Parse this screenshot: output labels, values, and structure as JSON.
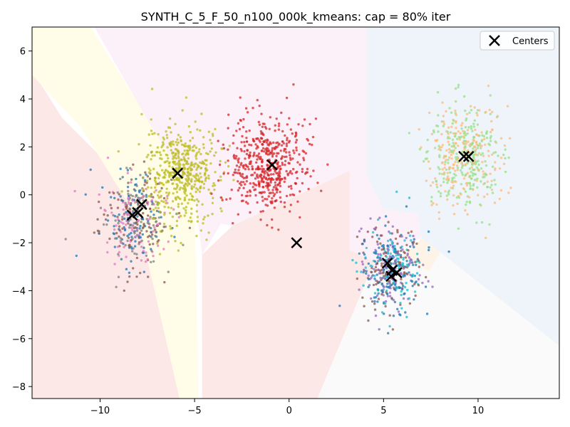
{
  "chart_data": {
    "type": "scatter",
    "title": "SYNTH_C_5_F_50_n100_000k_kmeans: cap = 80% iter",
    "xlabel": "",
    "ylabel": "",
    "xlim": [
      -13.6,
      14.3
    ],
    "ylim": [
      -8.5,
      7.0
    ],
    "x_ticks": [
      -10,
      -5,
      0,
      5,
      10
    ],
    "y_ticks": [
      -8,
      -6,
      -4,
      -2,
      0,
      2,
      4,
      6
    ],
    "x_tick_labels": [
      "−10",
      "−5",
      "0",
      "5",
      "10"
    ],
    "y_tick_labels": [
      "−8",
      "−6",
      "−4",
      "−2",
      "0",
      "2",
      "4",
      "6"
    ],
    "grid": false,
    "legend": {
      "position": "top-right",
      "entries": [
        "Centers"
      ]
    },
    "clusters": [
      {
        "center": [
          -8.2,
          -1.0
        ],
        "spread": [
          0.9,
          1.0
        ],
        "n": 420,
        "colors": [
          "#1f77b4",
          "#8c564b",
          "#e377c2",
          "#7f7f7f"
        ]
      },
      {
        "center": [
          -5.7,
          0.9
        ],
        "spread": [
          1.0,
          1.0
        ],
        "n": 500,
        "colors": [
          "#bcbd22"
        ]
      },
      {
        "center": [
          -1.1,
          1.2
        ],
        "spread": [
          1.0,
          1.0
        ],
        "n": 520,
        "colors": [
          "#d62728"
        ]
      },
      {
        "center": [
          5.4,
          -3.1
        ],
        "spread": [
          0.8,
          0.9
        ],
        "n": 480,
        "colors": [
          "#1f77b4",
          "#9467bd",
          "#17becf",
          "#8c564b"
        ]
      },
      {
        "center": [
          9.3,
          1.6
        ],
        "spread": [
          1.0,
          1.1
        ],
        "n": 480,
        "colors": [
          "#ffbb78",
          "#98df8a"
        ]
      }
    ],
    "centers": [
      [
        -8.3,
        -0.85
      ],
      [
        -8.0,
        -0.75
      ],
      [
        -7.8,
        -0.4
      ],
      [
        -5.9,
        0.9
      ],
      [
        -0.9,
        1.25
      ],
      [
        0.4,
        -2.0
      ],
      [
        5.2,
        -2.85
      ],
      [
        5.45,
        -3.15
      ],
      [
        5.7,
        -3.25
      ],
      [
        5.4,
        -3.4
      ],
      [
        9.25,
        1.6
      ],
      [
        9.5,
        1.6
      ]
    ],
    "regions": [
      {
        "color": "#fde8e8",
        "polygon": [
          [
            -13.6,
            5.2
          ],
          [
            -13.6,
            -8.5
          ],
          [
            -5.4,
            -8.5
          ],
          [
            -8.2,
            0.2
          ],
          [
            -12.0,
            3.2
          ]
        ]
      },
      {
        "color": "#fffce8",
        "polygon": [
          [
            -13.6,
            7.0
          ],
          [
            -10.5,
            7.0
          ],
          [
            -7.5,
            3.2
          ],
          [
            -5.0,
            0.2
          ],
          [
            -4.8,
            -8.5
          ],
          [
            -5.8,
            -8.5
          ],
          [
            -8.0,
            -1.0
          ],
          [
            -11.0,
            2.8
          ],
          [
            -13.6,
            5.0
          ]
        ]
      },
      {
        "color": "#fcf1f9",
        "polygon": [
          [
            -10.3,
            7.0
          ],
          [
            -3.6,
            7.0
          ],
          [
            -3.6,
            -1.2
          ],
          [
            -4.6,
            -2.5
          ],
          [
            -5.0,
            0.0
          ],
          [
            -7.4,
            3.0
          ]
        ]
      },
      {
        "color": "#fcf1f9",
        "polygon": [
          [
            -3.6,
            7.0
          ],
          [
            4.1,
            7.0
          ],
          [
            4.1,
            0.8
          ],
          [
            5.0,
            -0.6
          ],
          [
            6.8,
            -0.8
          ],
          [
            7.0,
            -1.8
          ],
          [
            4.5,
            -2.8
          ],
          [
            3.2,
            -2.3
          ],
          [
            3.2,
            1.0
          ],
          [
            -3.0,
            -1.3
          ],
          [
            -3.6,
            -1.2
          ]
        ]
      },
      {
        "color": "#fde8e8",
        "polygon": [
          [
            -3.0,
            -1.3
          ],
          [
            3.2,
            1.0
          ],
          [
            3.2,
            -2.3
          ],
          [
            4.5,
            -2.8
          ],
          [
            1.5,
            -8.5
          ],
          [
            -4.6,
            -8.5
          ],
          [
            -4.6,
            -2.5
          ]
        ]
      },
      {
        "color": "#eef4fa",
        "polygon": [
          [
            4.1,
            7.0
          ],
          [
            14.3,
            7.0
          ],
          [
            14.3,
            -6.3
          ],
          [
            8.0,
            -2.4
          ],
          [
            7.0,
            -1.8
          ],
          [
            6.8,
            -0.8
          ],
          [
            5.0,
            -0.6
          ],
          [
            4.1,
            0.8
          ]
        ]
      },
      {
        "color": "#fdf3e6",
        "polygon": [
          [
            7.0,
            -1.8
          ],
          [
            8.0,
            -2.4
          ],
          [
            7.4,
            -3.2
          ],
          [
            6.0,
            -2.6
          ]
        ]
      },
      {
        "color": "#fafafa",
        "polygon": [
          [
            1.5,
            -8.5
          ],
          [
            4.5,
            -2.8
          ],
          [
            6.0,
            -2.6
          ],
          [
            7.4,
            -3.2
          ],
          [
            8.0,
            -2.4
          ],
          [
            14.3,
            -6.3
          ],
          [
            14.3,
            -8.5
          ]
        ]
      }
    ]
  }
}
